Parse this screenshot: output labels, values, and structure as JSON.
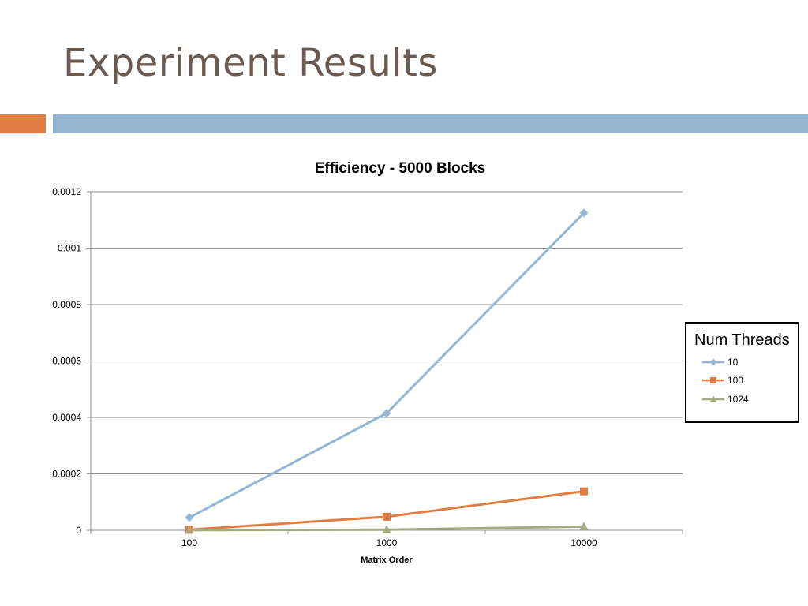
{
  "slide": {
    "title": "Experiment Results",
    "accent_orange": "#e07d43",
    "accent_blue": "#94b6d2",
    "title_color": "#6b5a4f"
  },
  "chart_data": {
    "type": "line",
    "title": "Efficiency - 5000 Blocks",
    "xlabel": "Matrix Order",
    "ylabel": "",
    "categories": [
      "100",
      "1000",
      "10000"
    ],
    "ylim": [
      0,
      0.0012
    ],
    "yticks": [
      "0",
      "0.0002",
      "0.0004",
      "0.0006",
      "0.0008",
      "0.001",
      "0.0012"
    ],
    "grid": true,
    "legend": {
      "title": "Num Threads",
      "placement": "right"
    },
    "series": [
      {
        "name": "10",
        "values": [
          4.5e-05,
          0.000415,
          0.001125
        ],
        "color": "#94b6d2",
        "marker": "diamond"
      },
      {
        "name": "100",
        "values": [
          2e-06,
          4.8e-05,
          0.000138
        ],
        "color": "#e07d43",
        "marker": "square"
      },
      {
        "name": "1024",
        "values": [
          5e-07,
          2e-06,
          1.3e-05
        ],
        "color": "#a5ab81",
        "marker": "triangle"
      }
    ]
  }
}
